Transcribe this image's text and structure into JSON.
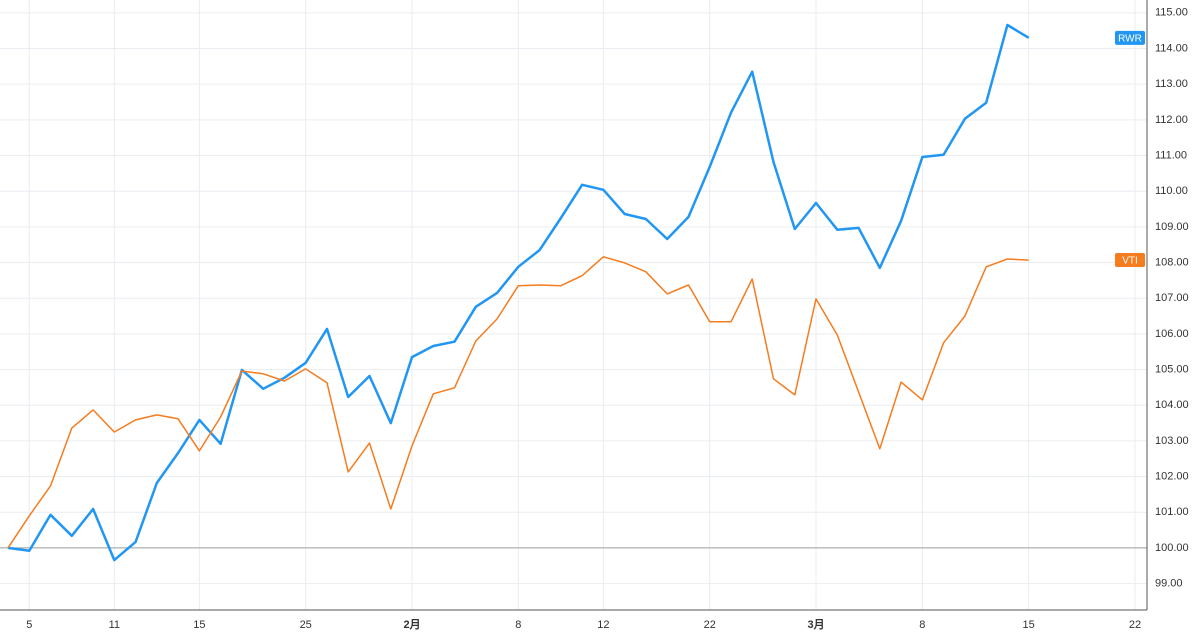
{
  "chart_data": {
    "type": "line",
    "categories": [
      null,
      "5",
      null,
      null,
      null,
      "11",
      null,
      null,
      null,
      "15",
      null,
      null,
      null,
      null,
      "25",
      null,
      null,
      null,
      null,
      "2月",
      null,
      null,
      null,
      null,
      "8",
      null,
      null,
      null,
      "12",
      null,
      null,
      null,
      null,
      "22",
      null,
      null,
      null,
      null,
      "3月",
      null,
      null,
      null,
      null,
      "8",
      null,
      null,
      null,
      null,
      "15",
      null,
      null,
      null,
      null,
      "22"
    ],
    "series": [
      {
        "name": "RWR",
        "color": "#2196f3",
        "values": [
          100.0,
          99.92,
          100.93,
          100.34,
          101.09,
          99.66,
          100.17,
          101.82,
          102.66,
          103.59,
          102.92,
          104.99,
          104.46,
          104.77,
          105.19,
          106.14,
          104.23,
          104.82,
          103.5,
          105.35,
          105.66,
          105.78,
          106.76,
          107.15,
          107.88,
          108.35,
          109.25,
          110.18,
          110.04,
          109.36,
          109.22,
          108.66,
          109.28,
          110.68,
          112.2,
          113.35,
          110.82,
          108.94,
          109.67,
          108.92,
          108.97,
          107.85,
          109.17,
          110.96,
          111.02,
          112.03,
          112.48,
          114.66,
          114.3,
          null,
          null,
          null,
          null,
          null
        ]
      },
      {
        "name": "VTI",
        "color": "#f57c1f",
        "values": [
          100.0,
          100.9,
          101.74,
          103.36,
          103.87,
          103.25,
          103.59,
          103.73,
          103.62,
          102.72,
          103.67,
          104.96,
          104.88,
          104.68,
          105.02,
          104.63,
          102.13,
          102.94,
          101.09,
          102.86,
          104.32,
          104.49,
          105.8,
          106.42,
          107.35,
          107.37,
          107.35,
          107.63,
          108.16,
          107.99,
          107.74,
          107.12,
          107.37,
          106.34,
          106.34,
          107.54,
          104.74,
          104.29,
          106.98,
          105.97,
          104.37,
          102.78,
          104.65,
          104.15,
          105.75,
          106.5,
          107.88,
          108.1,
          108.07,
          null,
          null,
          null,
          null,
          null
        ]
      }
    ],
    "ylim": [
      98.26,
      115.36
    ],
    "yticks": [
      {
        "value": 99,
        "label": "99.00"
      },
      {
        "value": 100,
        "label": "100.00"
      },
      {
        "value": 101,
        "label": "101.00"
      },
      {
        "value": 102,
        "label": "102.00"
      },
      {
        "value": 103,
        "label": "103.00"
      },
      {
        "value": 104,
        "label": "104.00"
      },
      {
        "value": 105,
        "label": "105.00"
      },
      {
        "value": 106,
        "label": "106.00"
      },
      {
        "value": 107,
        "label": "107.00"
      },
      {
        "value": 108,
        "label": "108.00"
      },
      {
        "value": 109,
        "label": "109.00"
      },
      {
        "value": 110,
        "label": "110.00"
      },
      {
        "value": 111,
        "label": "111.00"
      },
      {
        "value": 112,
        "label": "112.00"
      },
      {
        "value": 113,
        "label": "113.00"
      },
      {
        "value": 114,
        "label": "114.00"
      },
      {
        "value": 115,
        "label": "115.00"
      }
    ],
    "baseline": 100,
    "grid": true
  }
}
